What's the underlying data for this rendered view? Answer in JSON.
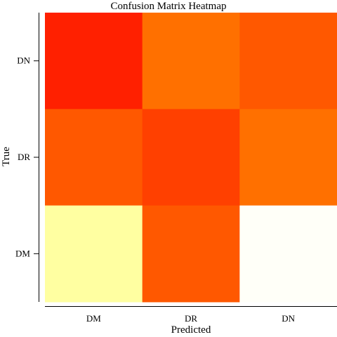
{
  "chart_data": {
    "type": "heatmap",
    "title": "Confusion Matrix Heatmap",
    "xlabel": "Predicted",
    "ylabel": "True",
    "x_categories": [
      "DM",
      "DR",
      "DN"
    ],
    "y_categories_bottom_to_top": [
      "DM",
      "DR",
      "DN"
    ],
    "values": [
      [
        0.9,
        0.6,
        0.7
      ],
      [
        0.7,
        0.8,
        0.6
      ],
      [
        0.1,
        0.7,
        0.0
      ]
    ],
    "value_range": [
      0.0,
      1.0
    ],
    "colormap": "heat",
    "colorscale": [
      "#ff0000",
      "#ff4000",
      "#ff7000",
      "#ffe000",
      "#ffff4a",
      "#fffff8"
    ],
    "grid": false,
    "legend": "none"
  }
}
